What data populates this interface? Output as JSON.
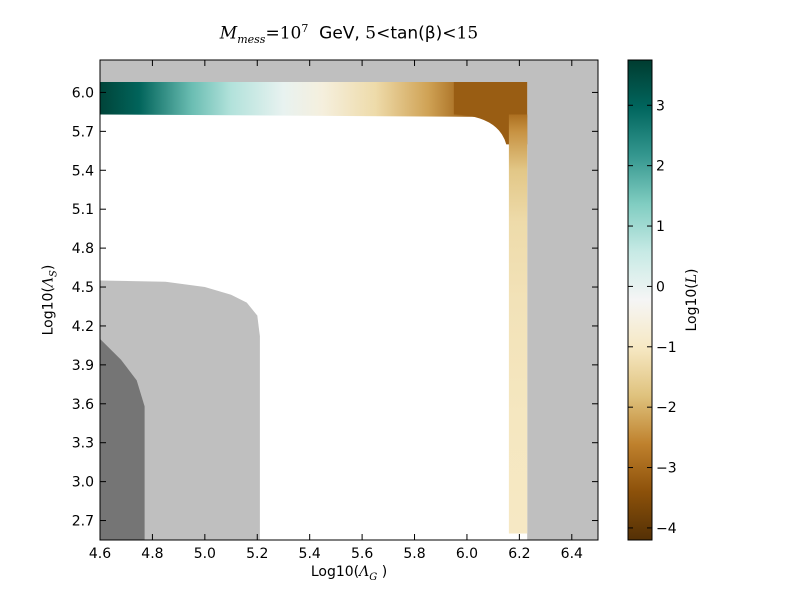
{
  "chart_data": {
    "type": "heatmap",
    "title": {
      "prefix_symbol": "M",
      "prefix_subscript": "mess",
      "eq": "=10",
      "exponent": "7",
      "unit": "GeV,",
      "range_low": "5",
      "lt1": "<",
      "mid": "tan(β)",
      "lt2": "<",
      "range_high": "15"
    },
    "xlabel": {
      "prefix": "Log10(",
      "symbol": "Λ",
      "sub": "G",
      "suffix": " )"
    },
    "ylabel": {
      "prefix": "Log10(",
      "symbol": "Λ",
      "sub": "S",
      "suffix": ")"
    },
    "colorbar_label": {
      "prefix": "Log10(",
      "symbol": "L",
      "suffix": ")"
    },
    "xlim": [
      4.6,
      6.5
    ],
    "ylim": [
      2.55,
      6.25
    ],
    "x_ticks": [
      "4.6",
      "4.8",
      "5.0",
      "5.2",
      "5.4",
      "5.6",
      "5.8",
      "6.0",
      "6.2",
      "6.4"
    ],
    "y_ticks": [
      "2.7",
      "3.0",
      "3.3",
      "3.6",
      "3.9",
      "4.2",
      "4.5",
      "4.8",
      "5.1",
      "5.4",
      "5.7",
      "6.0"
    ],
    "colorbar_range": [
      -4.2,
      3.75
    ],
    "colorbar_ticks": [
      "3",
      "2",
      "1",
      "0",
      "−1",
      "−2",
      "−3",
      "−4"
    ],
    "colormap": "BrBG",
    "regions": [
      {
        "kind": "excluded",
        "color": "#bfbfbf",
        "polygon": [
          [
            6.23,
            2.55
          ],
          [
            6.5,
            2.55
          ],
          [
            6.5,
            6.25
          ],
          [
            4.6,
            6.25
          ],
          [
            4.6,
            6.08
          ],
          [
            6.23,
            6.08
          ]
        ]
      },
      {
        "kind": "excluded",
        "color": "#bfbfbf",
        "polygon": [
          [
            4.6,
            2.55
          ],
          [
            5.21,
            2.55
          ],
          [
            5.21,
            4.12
          ],
          [
            5.2,
            4.28
          ],
          [
            5.16,
            4.38
          ],
          [
            5.1,
            4.44
          ],
          [
            5.0,
            4.5
          ],
          [
            4.85,
            4.54
          ],
          [
            4.6,
            4.55
          ]
        ]
      },
      {
        "kind": "excluded-dark",
        "color": "#757575",
        "polygon": [
          [
            4.6,
            2.55
          ],
          [
            4.77,
            2.55
          ],
          [
            4.77,
            3.58
          ],
          [
            4.74,
            3.78
          ],
          [
            4.68,
            3.94
          ],
          [
            4.6,
            4.1
          ]
        ]
      }
    ],
    "allowed_band": {
      "top_strip": {
        "x": [
          4.6,
          6.2
        ],
        "y": [
          5.83,
          6.08
        ],
        "log10L_at_x": [
          [
            4.6,
            3.6
          ],
          [
            4.75,
            3.0
          ],
          [
            4.95,
            1.6
          ],
          [
            5.1,
            0.8
          ],
          [
            5.3,
            0.0
          ],
          [
            5.45,
            -0.6
          ],
          [
            5.65,
            -1.3
          ],
          [
            5.85,
            -2.2
          ],
          [
            6.0,
            -3.1
          ],
          [
            6.1,
            -3.5
          ],
          [
            6.2,
            -3.4
          ]
        ]
      },
      "right_strip": {
        "x": [
          6.16,
          6.23
        ],
        "y": [
          2.6,
          5.83
        ],
        "log10L_at_y": [
          [
            2.6,
            -1.0
          ],
          [
            3.5,
            -1.05
          ],
          [
            4.4,
            -1.15
          ],
          [
            5.0,
            -1.3
          ],
          [
            5.4,
            -1.7
          ],
          [
            5.7,
            -2.4
          ],
          [
            5.83,
            -2.9
          ]
        ]
      }
    }
  }
}
